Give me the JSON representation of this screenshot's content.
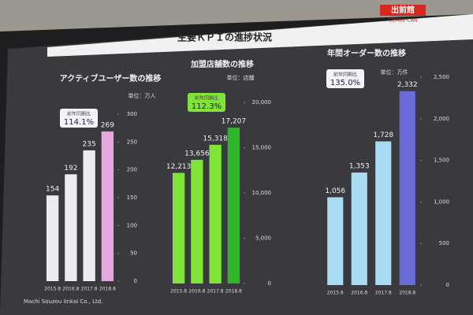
{
  "header": {
    "title": "主要ＫＰＩの進捗状況",
    "logo": "出前館",
    "logo_sub": "DEMAE-CAN"
  },
  "footer": "Machi Souzou Iinkai Co., Ltd.",
  "chart_data": [
    {
      "type": "bar",
      "title": "アクティブユーザー数の推移",
      "unit": "単位：万人",
      "badge_label": "前年同期比",
      "badge_value": "114.1%",
      "categories": [
        "2015.8",
        "2016.8",
        "2017.8",
        "2018.8"
      ],
      "values": [
        154,
        192,
        235,
        269
      ],
      "colors": [
        "#eeeaf2",
        "#eeeaf2",
        "#eeeaf2",
        "#e6a6de"
      ],
      "ylim": [
        0,
        300
      ],
      "yticks": [
        0,
        50,
        100,
        150,
        200,
        250,
        300
      ]
    },
    {
      "type": "bar",
      "title": "加盟店舗数の推移",
      "unit": "単位：店舗",
      "badge_label": "前年同期比",
      "badge_value": "112.3%",
      "categories": [
        "2015.8",
        "2016.8",
        "2017.8",
        "2018.8"
      ],
      "values": [
        12213,
        13656,
        15318,
        17207
      ],
      "value_labels": [
        "12,213",
        "13,656",
        "15,318",
        "17,207"
      ],
      "colors": [
        "#7fe33a",
        "#7fe33a",
        "#7fe33a",
        "#2fb52a"
      ],
      "ylim": [
        0,
        20000
      ],
      "yticks": [
        0,
        {
          "value": 5000,
          "label": "5,000"
        },
        {
          "value": 10000,
          "label": "10,000"
        },
        {
          "value": 15000,
          "label": "15,000"
        },
        {
          "value": 20000,
          "label": "20,000"
        }
      ]
    },
    {
      "type": "bar",
      "title": "年間オーダー数の推移",
      "unit": "単位：万件",
      "badge_label": "前年同期比",
      "badge_value": "135.0%",
      "categories": [
        "2015.8",
        "2016.8",
        "2017.8",
        "2018.8"
      ],
      "values": [
        1056,
        1353,
        1728,
        2332
      ],
      "value_labels": [
        "1,056",
        "1,353",
        "1,728",
        "2,332"
      ],
      "colors": [
        "#a8dcf5",
        "#a8dcf5",
        "#a8dcf5",
        "#6a6cd8"
      ],
      "ylim": [
        0,
        2500
      ],
      "yticks": [
        0,
        500,
        {
          "value": 1000,
          "label": "1,000"
        },
        {
          "value": 1500,
          "label": "1,500"
        },
        {
          "value": 2000,
          "label": "2,000"
        },
        {
          "value": 2500,
          "label": "2,500"
        }
      ]
    }
  ]
}
